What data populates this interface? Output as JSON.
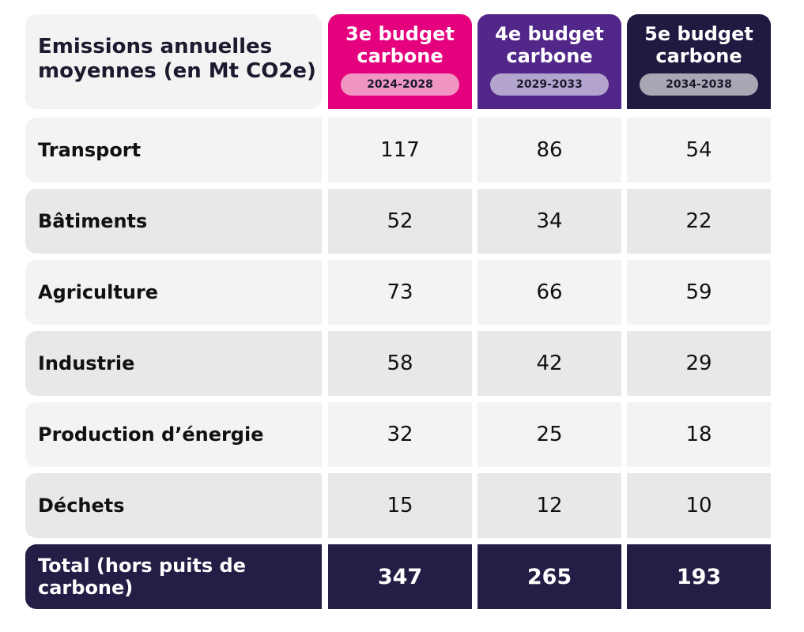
{
  "chart_data": {
    "type": "table",
    "title_lines": [
      "Emissions annuelles",
      "moyennes (en Mt CO2e)"
    ],
    "columns": [
      {
        "name": "3e budget carbone",
        "period": "2024-2028",
        "color": "#e5007e",
        "pill_color": "#f095c2"
      },
      {
        "name": "4e budget carbone",
        "period": "2029-2033",
        "color": "#51278a",
        "pill_color": "#b3a4ce"
      },
      {
        "name": "5e budget carbone",
        "period": "2034-2038",
        "color": "#201a40",
        "pill_color": "#a8a8b4"
      }
    ],
    "rows": [
      {
        "label": "Transport",
        "values": [
          "117",
          "86",
          "54"
        ]
      },
      {
        "label": "Bâtiments",
        "values": [
          "52",
          "34",
          "22"
        ]
      },
      {
        "label": "Agriculture",
        "values": [
          "73",
          "66",
          "59"
        ]
      },
      {
        "label": "Industrie",
        "values": [
          "58",
          "42",
          "29"
        ]
      },
      {
        "label": "Production d’énergie",
        "values": [
          "32",
          "25",
          "18"
        ]
      },
      {
        "label": "Déchets",
        "values": [
          "15",
          "12",
          "10"
        ]
      }
    ],
    "total": {
      "label_lines": [
        "Total (hors puits de",
        "carbone)"
      ],
      "values": [
        "347",
        "265",
        "193"
      ]
    }
  }
}
